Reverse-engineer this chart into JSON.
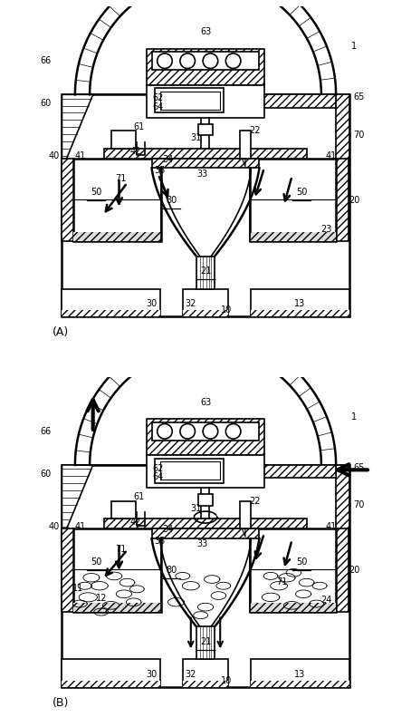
{
  "fig_width": 4.54,
  "fig_height": 8.03,
  "dpi": 100,
  "bg_color": "#ffffff",
  "line_color": "#000000"
}
